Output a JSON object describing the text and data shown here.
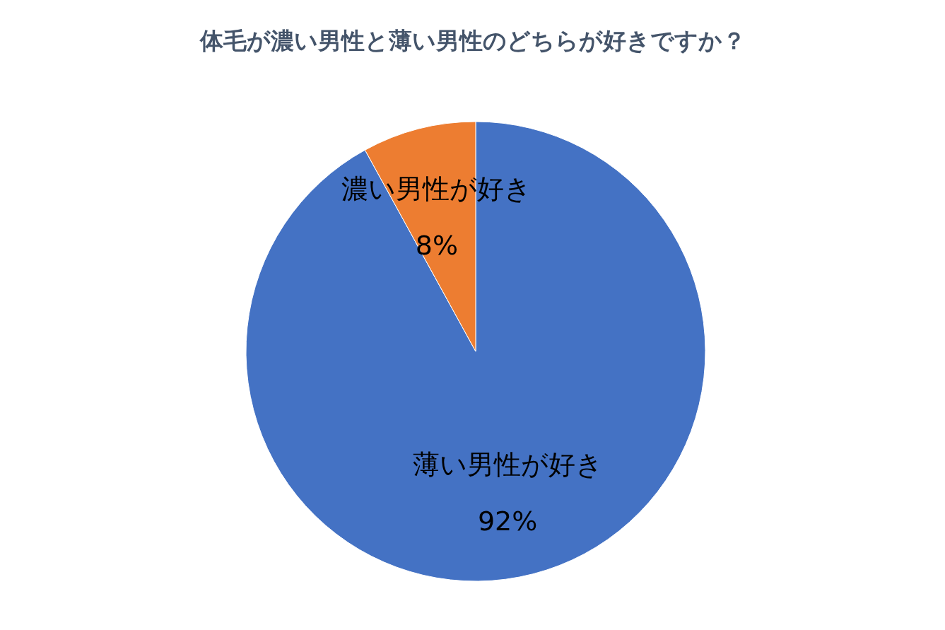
{
  "chart_data": {
    "type": "pie",
    "title": "体毛が濃い男性と薄い男性のどちらが好きですか？",
    "categories": [
      "薄い男性が好き",
      "濃い男性が好き"
    ],
    "values": [
      92,
      8
    ],
    "colors": [
      "#4472c4",
      "#ed7d31"
    ],
    "value_labels": [
      "92%",
      "8%"
    ],
    "legend": false
  }
}
